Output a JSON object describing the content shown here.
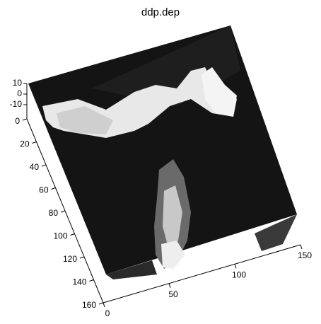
{
  "chart_data": {
    "type": "surface",
    "title": "ddp.dep",
    "xlim": [
      0,
      150
    ],
    "xticks": [
      0,
      50,
      100,
      150
    ],
    "ylim": [
      0,
      160
    ],
    "yticks": [
      0,
      20,
      40,
      60,
      80,
      100,
      120,
      140,
      160
    ],
    "zlim": [
      -10,
      10
    ],
    "zticks": [
      10,
      0,
      -10
    ]
  }
}
